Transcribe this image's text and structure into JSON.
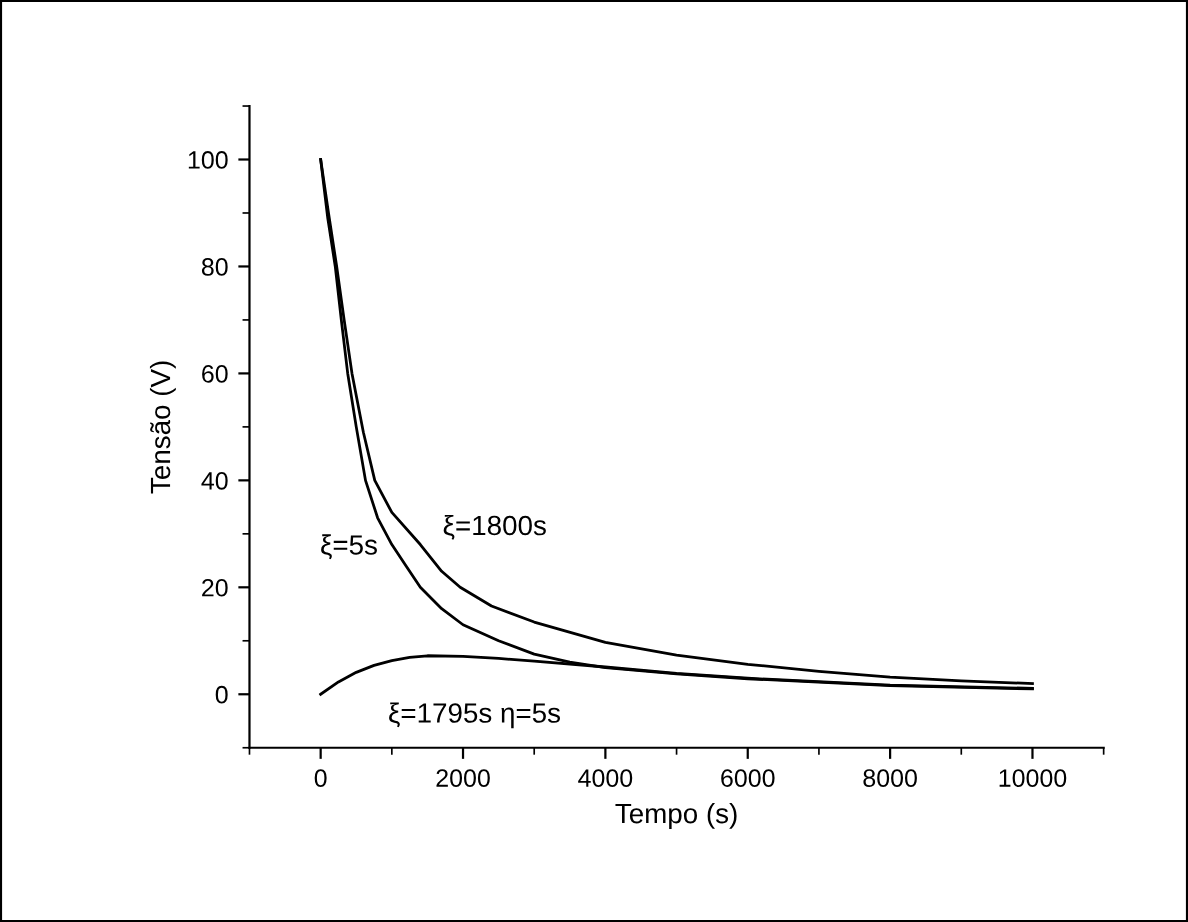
{
  "chart_data": {
    "type": "line",
    "xlabel": "Tempo (s)",
    "ylabel": "Tensão (V)",
    "xlim": [
      -1000,
      11000
    ],
    "xticks": [
      0,
      2000,
      4000,
      6000,
      8000,
      10000
    ],
    "ylim": [
      -10,
      110
    ],
    "yticks": [
      0,
      20,
      40,
      60,
      80,
      100
    ],
    "grid": false,
    "marker": "none",
    "line_style": "solid",
    "series": [
      {
        "name": "ξ=5s",
        "color": "#000000",
        "x": [
          0,
          100,
          205,
          290,
          380,
          500,
          630,
          800,
          1000,
          1200,
          1400,
          1700,
          2000,
          2500,
          3000,
          3500,
          4000,
          5000,
          6000,
          8000,
          10000
        ],
        "values": [
          100,
          89,
          80,
          70,
          60,
          50,
          40,
          33,
          28,
          24,
          20,
          16,
          13,
          10,
          7.5,
          6,
          5,
          3.8,
          2.9,
          1.6,
          1
        ]
      },
      {
        "name": "ξ=1800s",
        "color": "#000000",
        "x": [
          0,
          110,
          225,
          330,
          440,
          600,
          760,
          1000,
          1400,
          1700,
          1960,
          2400,
          3000,
          4000,
          5000,
          6000,
          7000,
          8000,
          9000,
          10000
        ],
        "values": [
          100,
          90,
          80,
          70,
          60,
          49,
          40,
          34,
          28,
          23,
          20,
          16.5,
          13.5,
          9.7,
          7.3,
          5.6,
          4.3,
          3.2,
          2.5,
          2
        ]
      },
      {
        "name": "ξ=1795s η=5s",
        "color": "#000000",
        "x": [
          0,
          250,
          500,
          750,
          1000,
          1250,
          1500,
          2000,
          2500,
          3000,
          4000,
          5000,
          6000,
          8000,
          10000
        ],
        "values": [
          0,
          2.3,
          4.1,
          5.4,
          6.3,
          6.9,
          7.2,
          7.1,
          6.7,
          6.2,
          5.1,
          3.9,
          3,
          1.7,
          1.1
        ]
      }
    ]
  }
}
